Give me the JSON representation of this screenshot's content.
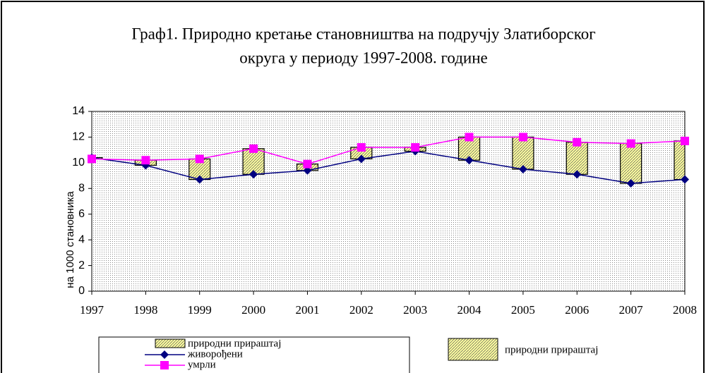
{
  "chart_data": {
    "type": "line",
    "title": [
      "Граф1. Природно кретање становништва на подручју Златиборског",
      "округа у периоду 1997-2008. године"
    ],
    "y_label": "на 1000 становника",
    "x": [
      1997,
      1998,
      1999,
      2000,
      2001,
      2002,
      2003,
      2004,
      2005,
      2006,
      2007,
      2008
    ],
    "xlim": [
      1997,
      2008
    ],
    "xticks": [
      1997,
      1998,
      1999,
      2000,
      2001,
      2002,
      2003,
      2004,
      2005,
      2006,
      2007,
      2008
    ],
    "ylim": [
      0,
      14
    ],
    "yticks": [
      0,
      2,
      4,
      6,
      8,
      10,
      12,
      14
    ],
    "drop_bars": {
      "name": "природни прираштај",
      "color": "#ffffa0"
    },
    "series": [
      {
        "name": "живорођени",
        "color": "#000080",
        "marker": "diamond",
        "values": [
          10.4,
          9.8,
          8.7,
          9.1,
          9.4,
          10.3,
          10.9,
          10.2,
          9.5,
          9.1,
          8.4,
          8.7
        ]
      },
      {
        "name": "умрли",
        "color": "#ff00ff",
        "marker": "square",
        "values": [
          10.3,
          10.2,
          10.3,
          11.1,
          9.9,
          11.2,
          11.2,
          12.0,
          12.0,
          11.6,
          11.5,
          11.7
        ]
      }
    ]
  }
}
